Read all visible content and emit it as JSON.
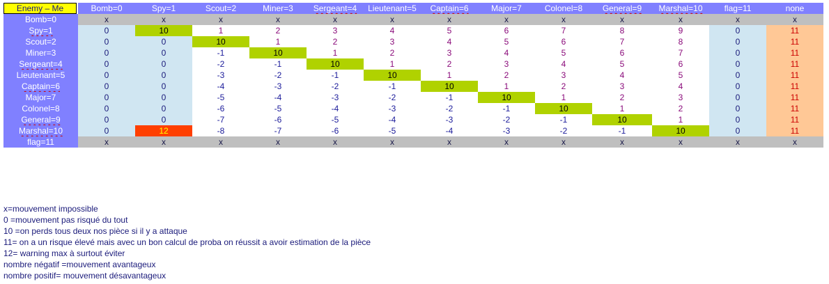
{
  "corner": {
    "label": "Enemy – Me"
  },
  "columns": [
    "Bomb=0",
    "Spy=1",
    "Scout=2",
    "Miner=3",
    "Sergeant=4",
    "Lieutenant=5",
    "Captain=6",
    "Major=7",
    "Colonel=8",
    "General=9",
    "Marshal=10",
    "flag=11",
    "none"
  ],
  "rows": [
    {
      "label": "Bomb=0",
      "values": [
        "x",
        "x",
        "x",
        "x",
        "x",
        "x",
        "x",
        "x",
        "x",
        "x",
        "x",
        "x",
        "x"
      ]
    },
    {
      "label": "Spy=1",
      "values": [
        "0",
        "10",
        "1",
        "2",
        "3",
        "4",
        "5",
        "6",
        "7",
        "8",
        "9",
        "0",
        "11"
      ]
    },
    {
      "label": "Scout=2",
      "values": [
        "0",
        "0",
        "10",
        "1",
        "2",
        "3",
        "4",
        "5",
        "6",
        "7",
        "8",
        "0",
        "11"
      ]
    },
    {
      "label": "Miner=3",
      "values": [
        "0",
        "0",
        "-1",
        "10",
        "1",
        "2",
        "3",
        "4",
        "5",
        "6",
        "7",
        "0",
        "11"
      ]
    },
    {
      "label": "Sergeant=4",
      "values": [
        "0",
        "0",
        "-2",
        "-1",
        "10",
        "1",
        "2",
        "3",
        "4",
        "5",
        "6",
        "0",
        "11"
      ]
    },
    {
      "label": "Lieutenant=5",
      "values": [
        "0",
        "0",
        "-3",
        "-2",
        "-1",
        "10",
        "1",
        "2",
        "3",
        "4",
        "5",
        "0",
        "11"
      ]
    },
    {
      "label": "Captain=6",
      "values": [
        "0",
        "0",
        "-4",
        "-3",
        "-2",
        "-1",
        "10",
        "1",
        "2",
        "3",
        "4",
        "0",
        "11"
      ]
    },
    {
      "label": "Major=7",
      "values": [
        "0",
        "0",
        "-5",
        "-4",
        "-3",
        "-2",
        "-1",
        "10",
        "1",
        "2",
        "3",
        "0",
        "11"
      ]
    },
    {
      "label": "Colonel=8",
      "values": [
        "0",
        "0",
        "-6",
        "-5",
        "-4",
        "-3",
        "-2",
        "-1",
        "10",
        "1",
        "2",
        "0",
        "11"
      ]
    },
    {
      "label": "General=9",
      "values": [
        "0",
        "0",
        "-7",
        "-6",
        "-5",
        "-4",
        "-3",
        "-2",
        "-1",
        "10",
        "1",
        "0",
        "11"
      ]
    },
    {
      "label": "Marshal=10",
      "values": [
        "0",
        "12",
        "-8",
        "-7",
        "-6",
        "-5",
        "-4",
        "-3",
        "-2",
        "-1",
        "10",
        "0",
        "11"
      ]
    },
    {
      "label": "flag=11",
      "values": [
        "x",
        "x",
        "x",
        "x",
        "x",
        "x",
        "x",
        "x",
        "x",
        "x",
        "x",
        "x",
        "x"
      ]
    }
  ],
  "legend": [
    " x=mouvement impossible",
    " 0 =mouvement  pas risqué du tout",
    "10 =on perds tous deux nos pièce si il y a attaque",
    " 11= on a un risque élevé mais avec un bon calcul de proba on réussit a avoir estimation de la pièce",
    "12= warning max à surtout éviter",
    "nombre négatif =mouvement avantageux",
    "nombre positif= mouvement désavantageux"
  ],
  "colors": {
    "header_bg": "#8080ff",
    "row_header_bg": "#8080ff",
    "gray_row_bg": "#bfbfbf",
    "diagonal_bg": "#b0d200",
    "light_blue_bg": "#d0e6f2",
    "orange_bg": "#ffc896",
    "warning_bg": "#ff3f00",
    "warning_text": "#ffff00",
    "negative_text": "#1a1a9a",
    "positive_text": "#8a0a7a",
    "zero_text": "#1a1a7a",
    "eleven_text": "#cc0000",
    "x_text": "#1a1a4a"
  }
}
